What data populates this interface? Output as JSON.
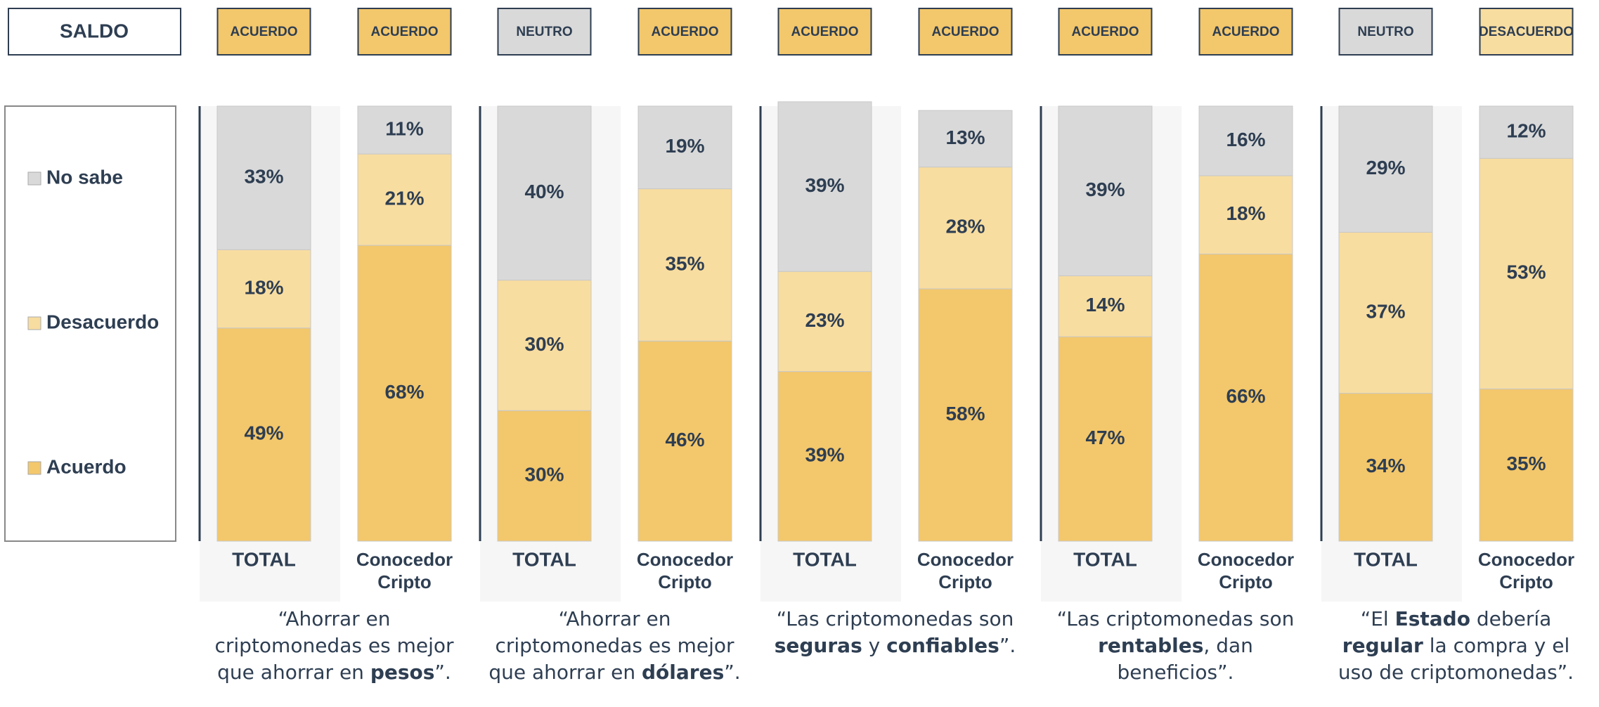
{
  "chart_data": {
    "type": "bar",
    "stacked": true,
    "saldo_title": "SALDO",
    "saldo": [
      {
        "label": "ACUERDO",
        "color": "#f3c76b"
      },
      {
        "label": "ACUERDO",
        "color": "#f3c76b"
      },
      {
        "label": "NEUTRO",
        "color": "#d9d9d9"
      },
      {
        "label": "ACUERDO",
        "color": "#f3c76b"
      },
      {
        "label": "ACUERDO",
        "color": "#f3c76b"
      },
      {
        "label": "ACUERDO",
        "color": "#f3c76b"
      },
      {
        "label": "ACUERDO",
        "color": "#f3c76b"
      },
      {
        "label": "ACUERDO",
        "color": "#f3c76b"
      },
      {
        "label": "NEUTRO",
        "color": "#d9d9d9"
      },
      {
        "label": "DESACUERDO",
        "color": "#f8dda0"
      }
    ],
    "categories": [
      "TOTAL",
      "Conocedor Cripto",
      "TOTAL",
      "Conocedor Cripto",
      "TOTAL",
      "Conocedor Cripto",
      "TOTAL",
      "Conocedor Cripto",
      "TOTAL",
      "Conocedor Cripto"
    ],
    "series": [
      {
        "name": "Acuerdo",
        "color": "#f3c76b",
        "values": [
          49,
          68,
          30,
          46,
          39,
          58,
          47,
          66,
          34,
          35
        ],
        "value_labels": [
          "49%",
          "68%",
          "30%",
          "46%",
          "39%",
          "58%",
          "47%",
          "66%",
          "34%",
          "35%"
        ]
      },
      {
        "name": "Desacuerdo",
        "color": "#f8dda0",
        "values": [
          18,
          21,
          30,
          35,
          23,
          28,
          14,
          18,
          37,
          53
        ],
        "value_labels": [
          "18%",
          "21%",
          "30%",
          "35%",
          "23%",
          "28%",
          "14%",
          "18%",
          "37%",
          "53%"
        ]
      },
      {
        "name": "No sabe",
        "color": "#d9d9d9",
        "values": [
          33,
          11,
          40,
          19,
          39,
          13,
          39,
          16,
          29,
          12
        ],
        "value_labels": [
          "33%",
          "11%",
          "40%",
          "19%",
          "39%",
          "13%",
          "39%",
          "16%",
          "29%",
          "12%"
        ]
      }
    ],
    "ylim": [
      0,
      100
    ],
    "quotes": [
      [
        {
          "text": "“Ahorrar en criptomonedas es mejor que ahorrar en "
        },
        {
          "text": "pesos",
          "bold": true
        },
        {
          "text": "”."
        }
      ],
      [
        {
          "text": "“Ahorrar en criptomonedas es mejor que ahorrar en "
        },
        {
          "text": "dólares",
          "bold": true
        },
        {
          "text": "”."
        }
      ],
      [
        {
          "text": "“Las criptomonedas son "
        },
        {
          "text": "seguras",
          "bold": true
        },
        {
          "text": " y "
        },
        {
          "text": "confiables",
          "bold": true
        },
        {
          "text": "”."
        }
      ],
      [
        {
          "text": "“Las criptomonedas son "
        },
        {
          "text": "rentables",
          "bold": true
        },
        {
          "text": ", dan beneficios”."
        }
      ],
      [
        {
          "text": "“El "
        },
        {
          "text": "Estado",
          "bold": true
        },
        {
          "text": " debería "
        },
        {
          "text": "regular",
          "bold": true
        },
        {
          "text": " la compra y el uso de criptomonedas”."
        }
      ]
    ]
  }
}
